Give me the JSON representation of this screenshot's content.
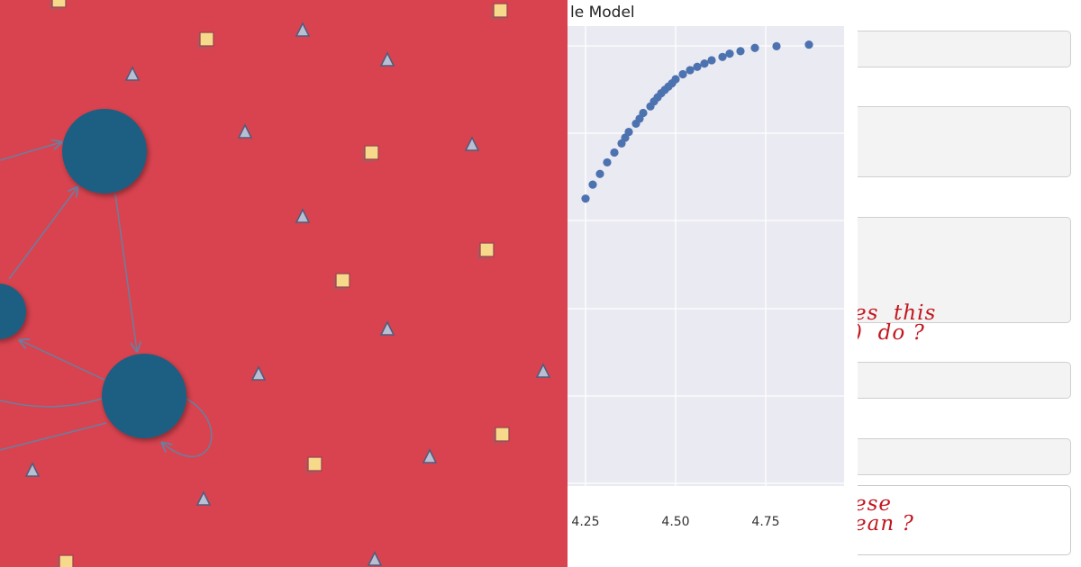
{
  "graph_panel": {
    "background": "#d8434f",
    "node_color": "#1a5f82",
    "edge_color": "#6a7fa0",
    "marker_square_color": "#f6d98a",
    "marker_triangle_color": "#b9bfd3",
    "icons": {
      "node": "circle-node-icon",
      "square_marker": "square-marker-icon",
      "triangle_marker": "triangle-marker-icon"
    }
  },
  "chart": {
    "title": "le Model",
    "background": "#eaeaf2",
    "point_color": "#4c72b0",
    "grid_color": "#ffffff"
  },
  "chart_data": {
    "type": "scatter",
    "title": "le Model",
    "xlabel": "",
    "ylabel": "",
    "x_ticks": [
      "4.25",
      "4.50",
      "4.75"
    ],
    "xlim": [
      4.245,
      4.97
    ],
    "ylim": [
      0,
      1
    ],
    "grid": true,
    "series": [
      {
        "x": [
          4.25,
          4.27,
          4.29,
          4.31,
          4.33,
          4.35,
          4.36,
          4.37,
          4.39,
          4.4,
          4.41,
          4.43,
          4.44,
          4.45,
          4.46,
          4.47,
          4.48,
          4.49,
          4.5,
          4.52,
          4.54,
          4.56,
          4.58,
          4.6,
          4.63,
          4.65,
          4.68,
          4.72,
          4.78,
          4.87
        ],
        "y": [
          0.808,
          0.825,
          0.838,
          0.852,
          0.864,
          0.875,
          0.882,
          0.889,
          0.899,
          0.905,
          0.912,
          0.92,
          0.926,
          0.931,
          0.936,
          0.94,
          0.944,
          0.948,
          0.953,
          0.959,
          0.964,
          0.968,
          0.972,
          0.976,
          0.98,
          0.984,
          0.987,
          0.991,
          0.993,
          0.995
        ]
      }
    ]
  },
  "form": {
    "notes": [
      {
        "text": "es  this\n)  do ?"
      },
      {
        "text": "ese\nean ?"
      }
    ],
    "note_color": "#c2161e"
  }
}
